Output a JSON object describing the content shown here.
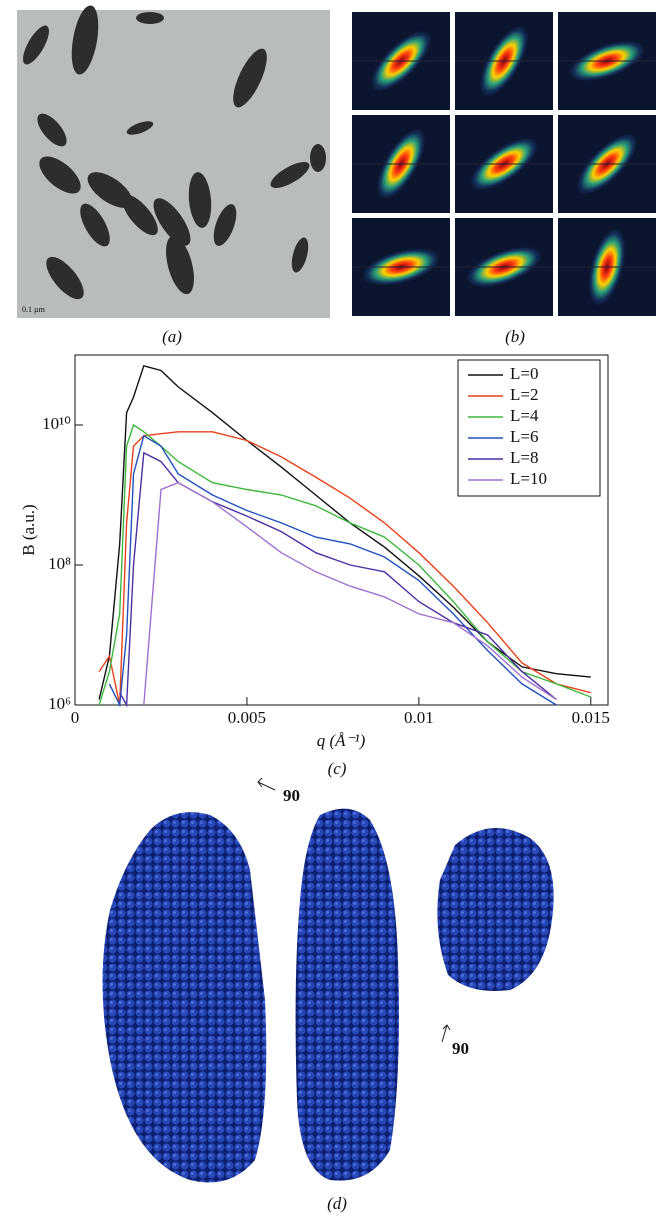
{
  "labels": {
    "a": "(a)",
    "b": "(b)",
    "c": "(c)",
    "d": "(d)"
  },
  "scale_bar": "0.1 µm",
  "rotations": [
    "90",
    "90"
  ],
  "chart_data": {
    "type": "line",
    "log_y": true,
    "y_label": "B (a.u.)",
    "x_label": "q (Å⁻¹)",
    "xlim": [
      0,
      0.0155
    ],
    "xticks": [
      0,
      0.005,
      0.01,
      0.015
    ],
    "ylim": [
      1000000,
      100000000000
    ],
    "yticks": [
      {
        "value": 1000000,
        "label": "10⁶"
      },
      {
        "value": 100000000,
        "label": "10⁸"
      },
      {
        "value": 10000000000,
        "label": "10¹⁰"
      }
    ],
    "legend": "upper-right",
    "x": [
      0.0007,
      0.001,
      0.0013,
      0.0015,
      0.0017,
      0.002,
      0.0025,
      0.003,
      0.004,
      0.005,
      0.006,
      0.007,
      0.008,
      0.009,
      0.01,
      0.011,
      0.012,
      0.013,
      0.014,
      0.015
    ],
    "series": [
      {
        "name": "L=0",
        "color": "#111111",
        "values": [
          1200000,
          5000000,
          200000000,
          15000000000,
          25000000000,
          70000000000,
          60000000000,
          35000000000,
          15000000000,
          6000000000,
          2500000000,
          1000000000,
          400000000,
          180000000,
          70000000,
          25000000,
          8000000,
          3500000,
          2800000,
          2500000
        ]
      },
      {
        "name": "L=2",
        "color": "#e8401a",
        "values": [
          3000000,
          5000000,
          1000000,
          400000000,
          5000000000,
          7000000000,
          7500000000,
          8000000000,
          8000000000,
          6000000000,
          3500000000,
          1800000000,
          900000000,
          400000000,
          150000000,
          50000000,
          15000000,
          4000000,
          2000000,
          1500000
        ]
      },
      {
        "name": "L=4",
        "color": "#3cb83c",
        "values": [
          1000000,
          3000000,
          20000000,
          5000000000,
          10000000000,
          8000000000,
          5000000000,
          3000000000,
          1500000000,
          1200000000,
          1000000000,
          700000000,
          400000000,
          250000000,
          100000000,
          30000000,
          8000000,
          3000000,
          2000000,
          1300000
        ]
      },
      {
        "name": "L=6",
        "color": "#2050c0",
        "values": [
          null,
          2000000,
          1000000,
          10000000,
          2000000000,
          7000000000,
          5000000000,
          2000000000,
          1000000000,
          600000000,
          400000000,
          250000000,
          200000000,
          130000000,
          60000000,
          20000000,
          6000000,
          2000000,
          1000000,
          null
        ]
      },
      {
        "name": "L=8",
        "color": "#4b2fa0",
        "values": [
          null,
          null,
          1500000,
          1000000,
          100000000,
          4000000000,
          3000000000,
          1500000000,
          800000000,
          500000000,
          300000000,
          150000000,
          100000000,
          80000000,
          30000000,
          15000000,
          10000000,
          3000000,
          1200000,
          null
        ]
      },
      {
        "name": "L=10",
        "color": "#a070d0",
        "values": [
          null,
          null,
          null,
          null,
          null,
          1000000,
          1200000000,
          1500000000,
          800000000,
          350000000,
          150000000,
          80000000,
          50000000,
          35000000,
          20000000,
          15000000,
          7000000,
          2500000,
          1200000,
          null
        ]
      }
    ]
  }
}
